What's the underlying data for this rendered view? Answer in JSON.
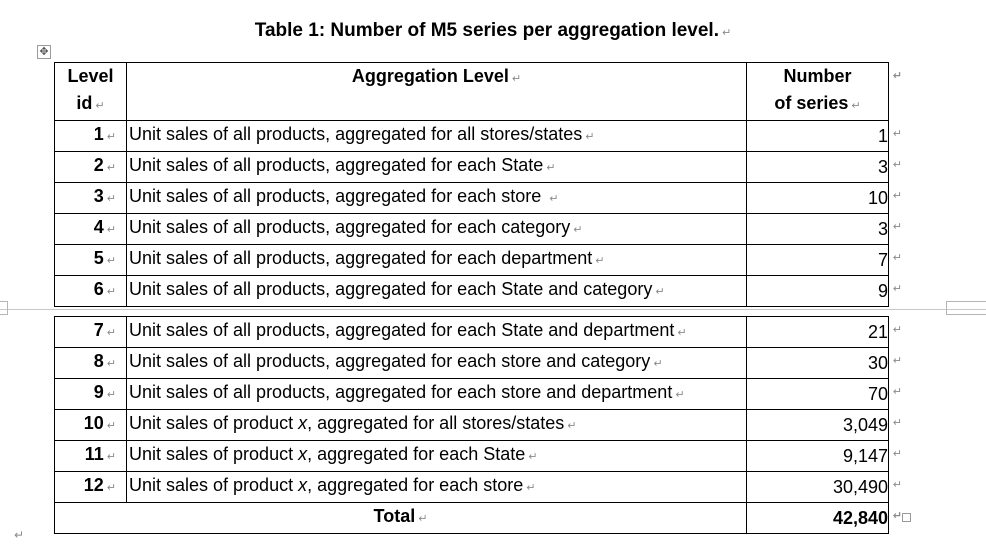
{
  "caption": "Table 1: Number of M5 series per aggregation level.",
  "marks": {
    "paragraph": "↵",
    "cell_end": "↵",
    "move_handle": "✥"
  },
  "header": {
    "level_id_line1": "Level",
    "level_id_line2": "id",
    "aggregation_level": "Aggregation Level",
    "number_line1": "Number",
    "number_line2": "of series"
  },
  "rows_top": [
    {
      "id": "1",
      "desc_a": "Unit sales of all products, aggregated for all stores/states",
      "desc_italic": "",
      "desc_b": "",
      "count": "1"
    },
    {
      "id": "2",
      "desc_a": "Unit sales of all products, aggregated for each State",
      "desc_italic": "",
      "desc_b": "",
      "count": "3"
    },
    {
      "id": "3",
      "desc_a": "Unit sales of all products, aggregated for each store ",
      "desc_italic": "",
      "desc_b": "",
      "count": "10"
    },
    {
      "id": "4",
      "desc_a": "Unit sales of all products, aggregated for each category",
      "desc_italic": "",
      "desc_b": "",
      "count": "3"
    },
    {
      "id": "5",
      "desc_a": "Unit sales of all products, aggregated for each department",
      "desc_italic": "",
      "desc_b": "",
      "count": "7"
    },
    {
      "id": "6",
      "desc_a": "Unit sales of all products, aggregated for each State and category",
      "desc_italic": "",
      "desc_b": "",
      "count": "9"
    }
  ],
  "rows_bottom": [
    {
      "id": "7",
      "desc_a": "Unit sales of all products, aggregated for each State and department",
      "desc_italic": "",
      "desc_b": "",
      "count": "21"
    },
    {
      "id": "8",
      "desc_a": "Unit sales of all products, aggregated for each store and category",
      "desc_italic": "",
      "desc_b": "",
      "count": "30"
    },
    {
      "id": "9",
      "desc_a": "Unit sales of all products, aggregated for each store and department",
      "desc_italic": "",
      "desc_b": "",
      "count": "70"
    },
    {
      "id": "10",
      "desc_a": "Unit sales of product ",
      "desc_italic": "x",
      "desc_b": ", aggregated for all stores/states",
      "count": "3,049"
    },
    {
      "id": "11",
      "desc_a": "Unit sales of product ",
      "desc_italic": "x",
      "desc_b": ", aggregated for each State",
      "count": "9,147"
    },
    {
      "id": "12",
      "desc_a": "Unit sales of product ",
      "desc_italic": "x",
      "desc_b": ", aggregated for each store",
      "count": "30,490"
    }
  ],
  "total": {
    "label": "Total",
    "count": "42,840"
  }
}
